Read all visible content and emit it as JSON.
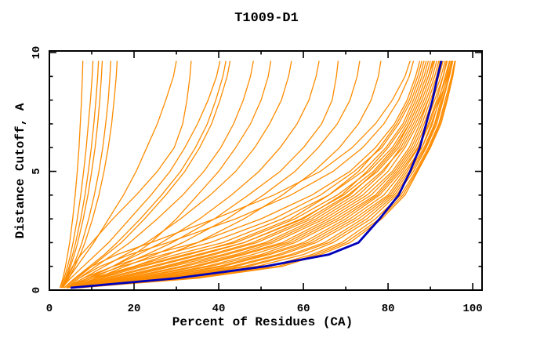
{
  "chart_data": {
    "type": "line",
    "title": "T1009-D1",
    "xlabel": "Percent of Residues (CA)",
    "ylabel": "Distance Cutoff, A",
    "xlim": [
      0,
      102.2
    ],
    "ylim": [
      0,
      10.07
    ],
    "grid": "off",
    "legend": "none",
    "x_major_ticks": [
      0,
      20,
      40,
      60,
      80,
      100
    ],
    "x_minor_ticks": [
      10,
      30,
      50,
      70,
      90
    ],
    "y_major_ticks": [
      0,
      5,
      10
    ],
    "y_minor_ticks": [
      1,
      2,
      3,
      4,
      6,
      7,
      8,
      9
    ],
    "x_tick_labels": [
      "0",
      "20",
      "40",
      "60",
      "80",
      "100"
    ],
    "y_tick_labels": [
      "0",
      "5",
      "10"
    ],
    "colors": {
      "models": "#ff8c00",
      "highlight": "#0000bb",
      "axis": "#000000",
      "background": "#ffffff"
    },
    "cutoffs": [
      0.1,
      0.5,
      1,
      1.5,
      2,
      3,
      4,
      5,
      6,
      7,
      8,
      9,
      9.65
    ],
    "highlight_curve": {
      "name": "highlighted-model",
      "x": [
        5,
        30,
        51,
        66,
        73,
        78,
        82.5,
        85.2,
        87.5,
        89,
        90.5,
        91.7,
        92.6
      ]
    },
    "model_curves": [
      [
        4,
        12,
        22,
        33,
        43,
        57,
        66,
        73,
        78,
        82,
        85,
        87,
        88
      ],
      [
        4,
        14,
        25,
        36,
        46,
        60,
        69,
        75,
        80,
        84,
        86.5,
        88.5,
        89.5
      ],
      [
        5,
        16,
        28,
        39,
        49,
        62,
        71,
        77,
        82,
        85,
        87.5,
        89.5,
        90.5
      ],
      [
        5,
        18,
        31,
        42,
        52,
        64,
        73,
        79,
        83,
        86,
        88.5,
        90.5,
        91.5
      ],
      [
        5,
        20,
        34,
        45,
        55,
        66,
        75,
        81,
        85,
        87.5,
        89.5,
        91.5,
        92.5
      ],
      [
        5,
        22,
        37,
        48,
        57,
        68,
        77,
        82,
        86,
        88.5,
        90.5,
        92.5,
        93.5
      ],
      [
        6,
        24,
        40,
        51,
        60,
        70,
        78,
        83,
        87,
        89.5,
        91.5,
        93,
        94
      ],
      [
        6,
        26,
        43,
        54,
        62,
        72,
        80,
        84,
        88,
        90.5,
        92,
        93.5,
        94.5
      ],
      [
        6,
        28,
        46,
        57,
        65,
        74,
        81,
        85,
        88.5,
        91,
        92.5,
        94,
        95
      ],
      [
        6,
        31,
        49,
        60,
        67,
        76,
        82,
        86,
        89,
        91.5,
        93,
        94.5,
        95.3
      ],
      [
        7,
        33,
        52,
        62,
        69,
        77,
        83,
        86.5,
        89.5,
        92,
        93.5,
        95,
        95.8
      ],
      [
        7,
        35,
        55,
        64,
        71,
        78.5,
        84,
        87,
        90,
        92.5,
        94,
        95.3,
        95.9
      ],
      [
        4,
        8,
        15,
        24,
        35,
        50,
        62,
        71,
        77,
        81.5,
        84.5,
        86.5,
        87.5
      ],
      [
        4,
        9,
        17,
        27,
        38,
        53,
        64,
        72,
        78.5,
        82.5,
        85.5,
        87.5,
        88.5
      ],
      [
        4,
        10,
        20,
        30,
        41,
        55,
        66,
        74,
        79.5,
        83.5,
        86,
        88,
        89
      ],
      [
        5,
        11,
        21,
        32,
        44,
        58,
        68,
        75.5,
        81,
        84.5,
        87,
        89,
        90
      ],
      [
        5,
        13,
        24,
        35,
        46,
        59.5,
        69.5,
        76.5,
        81.5,
        85,
        87.5,
        89.5,
        90.8
      ],
      [
        5,
        15,
        27,
        38,
        48,
        61,
        70.5,
        77.5,
        82.5,
        85.5,
        88,
        90,
        91
      ],
      [
        5,
        17,
        29,
        41,
        51,
        63,
        72,
        78.5,
        83.5,
        86.5,
        89,
        91,
        92
      ],
      [
        6,
        19,
        32,
        44,
        53,
        65,
        74,
        80,
        84,
        87,
        89.5,
        91.5,
        92.3
      ],
      [
        6,
        21,
        35,
        46,
        56,
        67,
        76,
        81.5,
        85.5,
        88,
        90,
        92,
        93
      ],
      [
        6,
        23,
        38,
        50,
        58,
        69,
        77.5,
        82.5,
        86.5,
        89,
        91,
        93,
        93.8
      ],
      [
        7,
        25,
        41,
        52,
        61,
        71,
        79,
        83.5,
        87.2,
        89.8,
        91.8,
        93.8,
        94.6
      ],
      [
        7,
        27,
        44,
        55,
        63,
        73,
        80.5,
        84.5,
        88,
        90.2,
        92.2,
        94.2,
        94.9
      ],
      [
        7,
        29,
        47,
        58,
        66,
        75,
        81.5,
        85.5,
        88.8,
        91.2,
        92.8,
        94.4,
        95.2
      ],
      [
        4,
        7,
        12,
        19,
        28,
        44,
        57,
        67,
        74,
        79,
        82.5,
        85,
        86
      ],
      [
        3.5,
        6,
        10,
        16,
        24,
        39,
        53,
        64,
        71.5,
        77,
        81,
        84,
        85.2
      ],
      [
        5,
        34,
        54,
        63,
        70,
        78,
        83.5,
        86.8,
        89.8,
        92.2,
        93.8,
        95.2,
        95.8
      ],
      [
        3,
        4.5,
        6.5,
        8.5,
        10.5,
        14,
        17.5,
        20.5,
        23,
        25.5,
        27.5,
        29.3,
        30
      ],
      [
        3,
        4,
        5.5,
        7.5,
        10,
        15,
        20.5,
        25.5,
        29.5,
        31.5,
        32.5,
        33.2,
        33.5
      ],
      [
        3,
        5,
        8,
        11,
        14,
        19,
        24,
        28.5,
        32,
        35,
        37.5,
        39.5,
        40.3
      ],
      [
        3.5,
        6,
        9.5,
        13,
        16,
        21.5,
        26.5,
        31,
        34.5,
        37.3,
        39.3,
        41,
        41.7
      ],
      [
        3.5,
        6.5,
        10,
        13.5,
        17,
        22.5,
        27.5,
        32,
        35.5,
        38.3,
        40.3,
        42,
        42.7
      ],
      [
        4,
        7,
        11,
        15,
        19,
        25.5,
        31.5,
        36.5,
        40.5,
        43.5,
        45.8,
        47.5,
        48.2
      ],
      [
        4,
        9,
        15,
        20,
        24,
        30,
        35,
        40,
        44,
        47.5,
        50,
        51.7,
        52.3
      ],
      [
        4,
        8,
        13,
        18,
        23,
        31,
        38,
        44,
        48.5,
        52,
        54.8,
        56.5,
        57.2
      ],
      [
        4.5,
        9,
        15,
        21,
        26.5,
        35.5,
        43,
        49.5,
        54.5,
        58.5,
        61.3,
        63,
        63.7
      ],
      [
        5,
        11,
        18,
        25,
        31.5,
        42,
        50.5,
        58,
        63.5,
        68,
        71,
        72.7,
        73.3
      ],
      [
        5,
        12,
        20,
        28,
        35,
        46,
        55,
        62.5,
        68.5,
        73,
        76,
        77.7,
        78.3
      ],
      [
        4.5,
        10,
        16.5,
        23,
        29,
        39,
        47,
        54.5,
        60,
        64.3,
        66.8,
        67.8,
        68.2
      ],
      [
        2.5,
        3.2,
        3.8,
        4.3,
        4.8,
        5.5,
        6.1,
        6.6,
        7,
        7.3,
        7.6,
        7.8,
        7.9
      ],
      [
        2.5,
        3.5,
        4.3,
        5,
        5.6,
        6.6,
        7.4,
        8.1,
        8.7,
        9.2,
        9.7,
        10.1,
        10.3
      ],
      [
        3,
        4,
        5,
        5.9,
        6.7,
        8,
        9.1,
        10,
        10.8,
        11.4,
        11.9,
        12.3,
        12.5
      ],
      [
        3,
        4.3,
        5.6,
        6.7,
        7.7,
        9.3,
        10.6,
        11.7,
        12.6,
        13.3,
        13.9,
        14.3,
        14.5
      ],
      [
        2.8,
        3.8,
        4.7,
        5.5,
        6.2,
        7.4,
        8.4,
        9.2,
        9.9,
        10.5,
        11,
        11.4,
        11.6
      ],
      [
        3.2,
        4.6,
        6,
        7.3,
        8.4,
        10.2,
        11.7,
        12.9,
        13.9,
        14.7,
        15.3,
        15.8,
        16
      ]
    ]
  }
}
